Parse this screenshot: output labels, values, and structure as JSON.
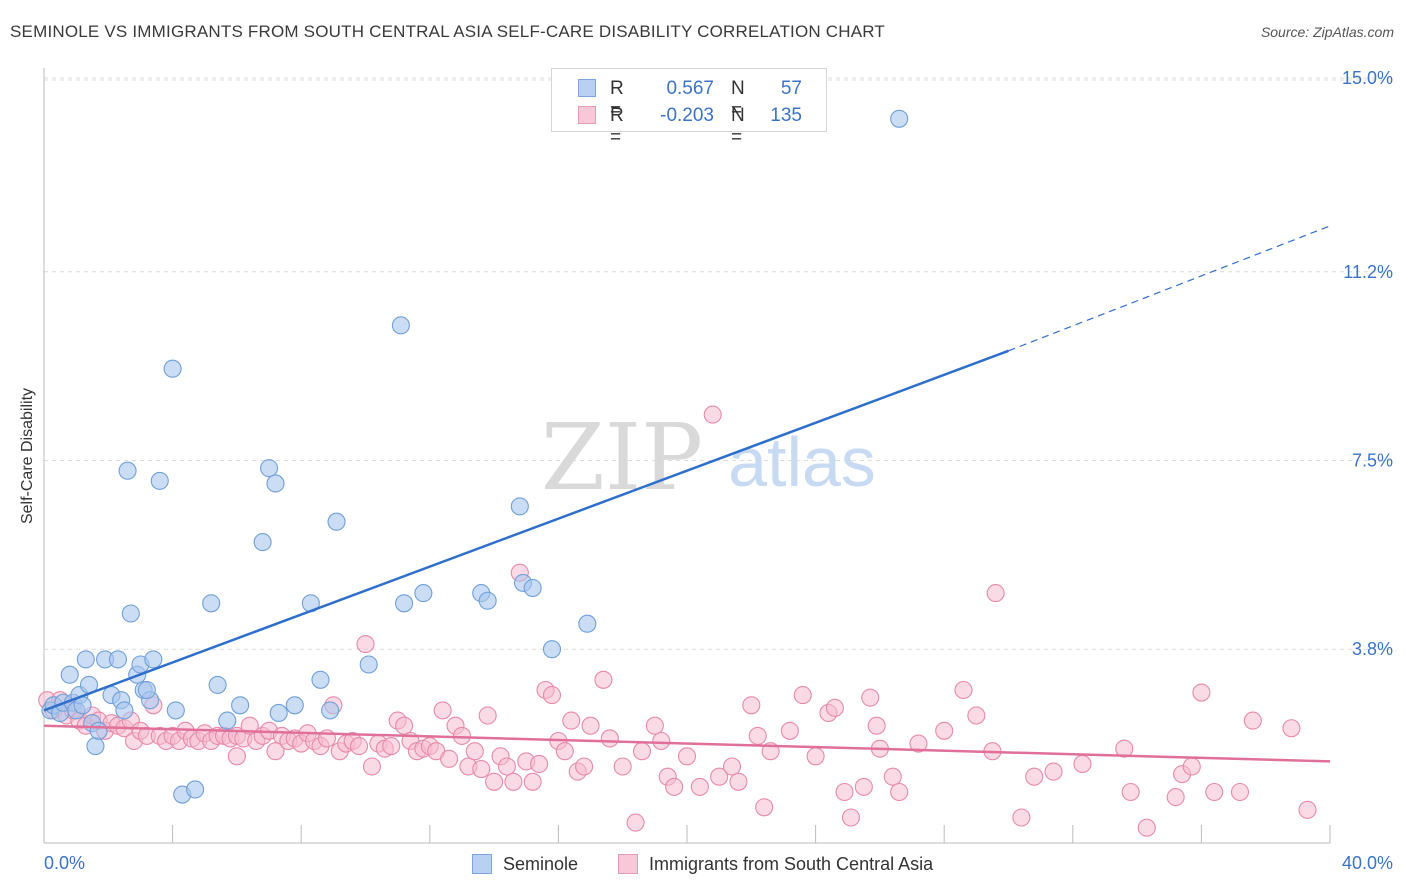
{
  "title": "SEMINOLE VS IMMIGRANTS FROM SOUTH CENTRAL ASIA SELF-CARE DISABILITY CORRELATION CHART",
  "source": "Source: ZipAtlas.com",
  "watermark": {
    "zip": "ZIP",
    "atlas": "atlas"
  },
  "legend": {
    "rows": [
      {
        "r_label": "R =",
        "r_value": "0.567",
        "n_label": "N =",
        "n_value": "57"
      },
      {
        "r_label": "R =",
        "r_value": "-0.203",
        "n_label": "N =",
        "n_value": "135"
      }
    ]
  },
  "bottom_legend": {
    "series_a": "Seminole",
    "series_b": "Immigrants from South Central Asia"
  },
  "colors": {
    "seminole_fill": "#a9c6ee",
    "seminole_stroke": "#6f9fd8",
    "seminole_line": "#2f6fcc",
    "immigrants_fill": "#f6bcd0",
    "immigrants_stroke": "#e889a9",
    "immigrants_line": "#e0709a",
    "tick_label": "#3b73c8",
    "grid": "#dcdcdc"
  },
  "chart_data": {
    "type": "scatter",
    "title": "SEMINOLE VS IMMIGRANTS FROM SOUTH CENTRAL ASIA SELF-CARE DISABILITY CORRELATION CHART",
    "xlabel": "",
    "ylabel": "Self-Care Disability",
    "xlim": [
      0,
      40
    ],
    "ylim": [
      0,
      15.5
    ],
    "x_tick_labels": [
      "0.0%",
      "40.0%"
    ],
    "y_ticks": [
      3.8,
      7.5,
      11.2,
      15.0
    ],
    "y_tick_labels": [
      "3.8%",
      "7.5%",
      "11.2%",
      "15.0%"
    ],
    "grid": "horizontal dashed",
    "legend_position": "top-center",
    "series": [
      {
        "name": "Seminole",
        "R": 0.567,
        "N": 57,
        "trend": {
          "x0": 0,
          "y0": 2.6,
          "x1": 30,
          "y1": 9.65,
          "dashed_to_x": 40,
          "dashed_to_y": 12.1
        },
        "points": [
          [
            0.2,
            2.6
          ],
          [
            0.3,
            2.7
          ],
          [
            0.5,
            2.55
          ],
          [
            0.6,
            2.75
          ],
          [
            0.8,
            3.3
          ],
          [
            0.9,
            2.75
          ],
          [
            1.0,
            2.6
          ],
          [
            1.1,
            2.9
          ],
          [
            1.3,
            3.6
          ],
          [
            1.4,
            3.1
          ],
          [
            1.5,
            2.35
          ],
          [
            1.6,
            1.9
          ],
          [
            1.7,
            2.2
          ],
          [
            1.9,
            3.6
          ],
          [
            2.1,
            2.9
          ],
          [
            2.3,
            3.6
          ],
          [
            2.4,
            2.8
          ],
          [
            2.5,
            2.6
          ],
          [
            2.6,
            7.3
          ],
          [
            2.7,
            4.5
          ],
          [
            2.9,
            3.3
          ],
          [
            3.0,
            3.5
          ],
          [
            3.1,
            3.0
          ],
          [
            3.3,
            2.8
          ],
          [
            3.4,
            3.6
          ],
          [
            3.6,
            7.1
          ],
          [
            4.0,
            9.3
          ],
          [
            4.1,
            2.6
          ],
          [
            4.3,
            0.95
          ],
          [
            4.7,
            1.05
          ],
          [
            5.2,
            4.7
          ],
          [
            5.4,
            3.1
          ],
          [
            5.7,
            2.4
          ],
          [
            6.1,
            2.7
          ],
          [
            6.8,
            5.9
          ],
          [
            7.0,
            7.35
          ],
          [
            7.2,
            7.05
          ],
          [
            7.3,
            2.55
          ],
          [
            7.8,
            2.7
          ],
          [
            8.3,
            4.7
          ],
          [
            8.6,
            3.2
          ],
          [
            8.9,
            2.6
          ],
          [
            9.1,
            6.3
          ],
          [
            10.1,
            3.5
          ],
          [
            11.1,
            10.15
          ],
          [
            11.2,
            4.7
          ],
          [
            11.8,
            4.9
          ],
          [
            13.6,
            4.9
          ],
          [
            13.8,
            4.75
          ],
          [
            14.8,
            6.6
          ],
          [
            14.9,
            5.1
          ],
          [
            15.2,
            5.0
          ],
          [
            15.8,
            3.8
          ],
          [
            16.9,
            4.3
          ],
          [
            26.6,
            14.2
          ],
          [
            3.2,
            3.0
          ],
          [
            1.2,
            2.7
          ]
        ]
      },
      {
        "name": "Immigrants from South Central Asia",
        "R": -0.203,
        "N": 135,
        "trend": {
          "x0": 0,
          "y0": 2.3,
          "x1": 40,
          "y1": 1.6
        },
        "points": [
          [
            0.1,
            2.8
          ],
          [
            0.3,
            2.6
          ],
          [
            0.5,
            2.8
          ],
          [
            0.7,
            2.5
          ],
          [
            0.9,
            2.6
          ],
          [
            1.1,
            2.4
          ],
          [
            1.3,
            2.3
          ],
          [
            1.5,
            2.5
          ],
          [
            1.7,
            2.4
          ],
          [
            1.9,
            2.2
          ],
          [
            2.1,
            2.35
          ],
          [
            2.3,
            2.3
          ],
          [
            2.5,
            2.25
          ],
          [
            2.7,
            2.4
          ],
          [
            2.8,
            2.0
          ],
          [
            3.0,
            2.2
          ],
          [
            3.2,
            2.1
          ],
          [
            3.4,
            2.7
          ],
          [
            3.6,
            2.1
          ],
          [
            3.8,
            2.0
          ],
          [
            4.0,
            2.1
          ],
          [
            4.2,
            2.0
          ],
          [
            4.4,
            2.2
          ],
          [
            4.6,
            2.05
          ],
          [
            4.8,
            2.0
          ],
          [
            5.0,
            2.15
          ],
          [
            5.2,
            2.0
          ],
          [
            5.4,
            2.1
          ],
          [
            5.6,
            2.1
          ],
          [
            5.8,
            2.05
          ],
          [
            6.0,
            2.1
          ],
          [
            6.2,
            2.05
          ],
          [
            6.4,
            2.3
          ],
          [
            6.6,
            2.0
          ],
          [
            6.8,
            2.1
          ],
          [
            7.0,
            2.2
          ],
          [
            7.2,
            1.8
          ],
          [
            7.4,
            2.1
          ],
          [
            7.6,
            2.0
          ],
          [
            7.8,
            2.05
          ],
          [
            8.0,
            1.95
          ],
          [
            8.2,
            2.15
          ],
          [
            8.4,
            2.0
          ],
          [
            8.6,
            1.9
          ],
          [
            8.8,
            2.05
          ],
          [
            9.0,
            2.7
          ],
          [
            9.2,
            1.8
          ],
          [
            9.4,
            1.95
          ],
          [
            9.6,
            2.0
          ],
          [
            9.8,
            1.9
          ],
          [
            10.0,
            3.9
          ],
          [
            10.2,
            1.5
          ],
          [
            10.4,
            1.95
          ],
          [
            10.6,
            1.85
          ],
          [
            10.8,
            1.9
          ],
          [
            11.0,
            2.4
          ],
          [
            11.2,
            2.3
          ],
          [
            11.4,
            2.0
          ],
          [
            11.6,
            1.8
          ],
          [
            11.8,
            1.85
          ],
          [
            12.0,
            1.9
          ],
          [
            12.2,
            1.8
          ],
          [
            12.4,
            2.6
          ],
          [
            12.6,
            1.65
          ],
          [
            12.8,
            2.3
          ],
          [
            13.0,
            2.1
          ],
          [
            13.2,
            1.5
          ],
          [
            13.4,
            1.8
          ],
          [
            13.6,
            1.45
          ],
          [
            13.8,
            2.5
          ],
          [
            14.0,
            1.2
          ],
          [
            14.2,
            1.7
          ],
          [
            14.4,
            1.5
          ],
          [
            14.6,
            1.2
          ],
          [
            14.8,
            5.3
          ],
          [
            15.0,
            1.6
          ],
          [
            15.2,
            1.2
          ],
          [
            15.4,
            1.55
          ],
          [
            15.6,
            3.0
          ],
          [
            15.8,
            2.9
          ],
          [
            16.0,
            2.0
          ],
          [
            16.2,
            1.8
          ],
          [
            16.4,
            2.4
          ],
          [
            16.6,
            1.4
          ],
          [
            16.8,
            1.5
          ],
          [
            17.0,
            2.3
          ],
          [
            17.4,
            3.2
          ],
          [
            17.6,
            2.05
          ],
          [
            18.0,
            1.5
          ],
          [
            18.4,
            0.4
          ],
          [
            18.6,
            1.8
          ],
          [
            19.0,
            2.3
          ],
          [
            19.4,
            1.3
          ],
          [
            19.6,
            1.1
          ],
          [
            20.0,
            1.7
          ],
          [
            20.4,
            1.1
          ],
          [
            20.8,
            8.4
          ],
          [
            21.0,
            1.3
          ],
          [
            21.4,
            1.5
          ],
          [
            21.6,
            1.2
          ],
          [
            22.0,
            2.7
          ],
          [
            22.2,
            2.1
          ],
          [
            22.4,
            0.7
          ],
          [
            22.6,
            1.8
          ],
          [
            23.2,
            2.2
          ],
          [
            23.6,
            2.9
          ],
          [
            24.0,
            1.7
          ],
          [
            24.4,
            2.55
          ],
          [
            24.6,
            2.65
          ],
          [
            24.9,
            1.0
          ],
          [
            25.1,
            0.5
          ],
          [
            25.5,
            1.1
          ],
          [
            25.7,
            2.85
          ],
          [
            25.9,
            2.3
          ],
          [
            26.0,
            1.85
          ],
          [
            26.4,
            1.3
          ],
          [
            26.6,
            1.0
          ],
          [
            27.2,
            1.95
          ],
          [
            28.0,
            2.2
          ],
          [
            28.6,
            3.0
          ],
          [
            29.0,
            2.5
          ],
          [
            29.5,
            1.8
          ],
          [
            29.6,
            4.9
          ],
          [
            30.4,
            0.5
          ],
          [
            30.8,
            1.3
          ],
          [
            31.4,
            1.4
          ],
          [
            32.3,
            1.55
          ],
          [
            33.6,
            1.85
          ],
          [
            33.8,
            1.0
          ],
          [
            35.2,
            0.9
          ],
          [
            35.4,
            1.35
          ],
          [
            35.7,
            1.5
          ],
          [
            36.0,
            2.95
          ],
          [
            36.4,
            1.0
          ],
          [
            37.2,
            1.0
          ],
          [
            37.6,
            2.4
          ],
          [
            38.8,
            2.25
          ],
          [
            39.3,
            0.65
          ],
          [
            34.3,
            0.3
          ],
          [
            19.2,
            2.0
          ],
          [
            6.0,
            1.7
          ]
        ]
      }
    ]
  }
}
